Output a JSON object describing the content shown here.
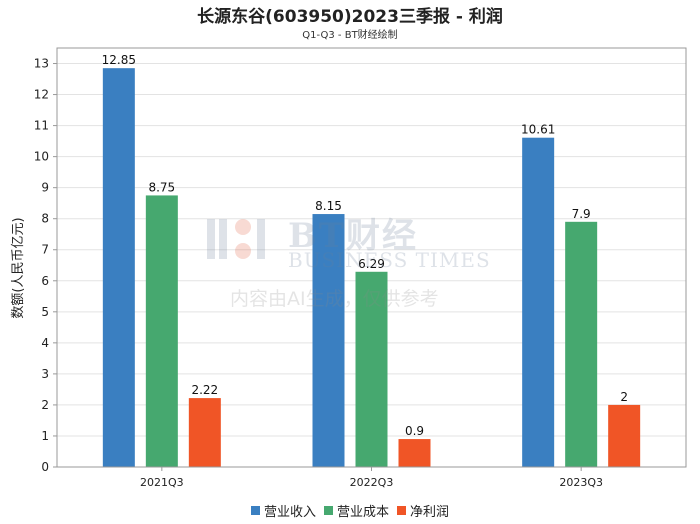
{
  "chart_data": {
    "type": "bar",
    "title": "长源东谷(603950)2023三季报 - 利润",
    "subtitle": "Q1-Q3 - BT财经绘制",
    "ylabel": "数额(人民币亿元)",
    "xlabel": "",
    "ylim": [
      0,
      13.5
    ],
    "yticks": [
      0,
      1,
      2,
      3,
      4,
      5,
      6,
      7,
      8,
      9,
      10,
      11,
      12,
      13
    ],
    "grid": true,
    "legend_position": "bottom",
    "categories": [
      "2021Q3",
      "2022Q3",
      "2023Q3"
    ],
    "series": [
      {
        "name": "营业收入",
        "color": "#3a7fc1",
        "values": [
          12.85,
          8.15,
          10.61
        ],
        "labels": [
          "12.85",
          "8.15",
          "10.61"
        ]
      },
      {
        "name": "营业成本",
        "color": "#46a86f",
        "values": [
          8.75,
          6.29,
          7.9
        ],
        "labels": [
          "8.75",
          "6.29",
          "7.9"
        ]
      },
      {
        "name": "净利润",
        "color": "#f05526",
        "values": [
          2.22,
          0.9,
          2
        ],
        "labels": [
          "2.22",
          "0.9",
          "2"
        ]
      }
    ]
  },
  "watermark": {
    "brand": "BT财经",
    "brand_en": "BUSINESS TIMES",
    "note": "内容由AI生成，仅供参考"
  }
}
